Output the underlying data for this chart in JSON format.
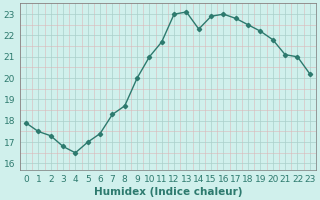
{
  "x": [
    0,
    1,
    2,
    3,
    4,
    5,
    6,
    7,
    8,
    9,
    10,
    11,
    12,
    13,
    14,
    15,
    16,
    17,
    18,
    19,
    20,
    21,
    22,
    23
  ],
  "y": [
    17.9,
    17.5,
    17.3,
    16.8,
    16.5,
    17.0,
    17.4,
    18.3,
    18.7,
    20.0,
    21.0,
    21.7,
    23.0,
    23.1,
    22.3,
    22.9,
    23.0,
    22.8,
    22.5,
    22.2,
    21.8,
    21.1,
    21.0,
    20.2
  ],
  "line_color": "#2d7a6e",
  "bg_color": "#d0f0ec",
  "major_grid_color": "#aacfca",
  "minor_grid_color": "#dbb8b8",
  "xlabel": "Humidex (Indice chaleur)",
  "ylim": [
    15.7,
    23.5
  ],
  "xlim": [
    -0.5,
    23.5
  ],
  "yticks": [
    16,
    17,
    18,
    19,
    20,
    21,
    22,
    23
  ],
  "xticks": [
    0,
    1,
    2,
    3,
    4,
    5,
    6,
    7,
    8,
    9,
    10,
    11,
    12,
    13,
    14,
    15,
    16,
    17,
    18,
    19,
    20,
    21,
    22,
    23
  ],
  "marker": "D",
  "markersize": 2.2,
  "linewidth": 1.0,
  "xlabel_fontsize": 7.5,
  "tick_fontsize": 6.5
}
